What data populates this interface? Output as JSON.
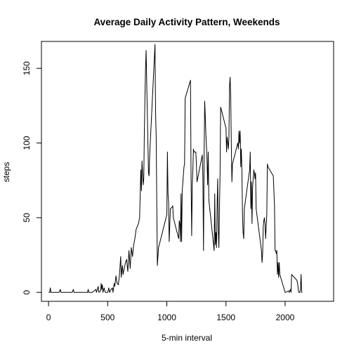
{
  "chart_data": {
    "type": "line",
    "title": "Average Daily Activity Pattern, Weekends",
    "xlabel": "5-min interval",
    "ylabel": "steps",
    "xlim": [
      -60,
      2410
    ],
    "ylim": [
      -6,
      168
    ],
    "xticks": [
      0,
      500,
      1000,
      1500,
      2000
    ],
    "yticks": [
      0,
      50,
      100,
      150
    ],
    "grid": false,
    "series": [
      {
        "color": "#000000",
        "points": [
          [
            0,
            0
          ],
          [
            10,
            0
          ],
          [
            15,
            3
          ],
          [
            20,
            0
          ],
          [
            50,
            0
          ],
          [
            90,
            0
          ],
          [
            100,
            2
          ],
          [
            105,
            0
          ],
          [
            150,
            0
          ],
          [
            200,
            0
          ],
          [
            210,
            2
          ],
          [
            215,
            0
          ],
          [
            250,
            0
          ],
          [
            300,
            0
          ],
          [
            330,
            0
          ],
          [
            335,
            2
          ],
          [
            340,
            0
          ],
          [
            370,
            0
          ],
          [
            400,
            2
          ],
          [
            405,
            0
          ],
          [
            420,
            4
          ],
          [
            425,
            0
          ],
          [
            440,
            1
          ],
          [
            445,
            6
          ],
          [
            450,
            2
          ],
          [
            455,
            5
          ],
          [
            460,
            0
          ],
          [
            470,
            3
          ],
          [
            480,
            0
          ],
          [
            500,
            0
          ],
          [
            510,
            3
          ],
          [
            515,
            0
          ],
          [
            530,
            2
          ],
          [
            540,
            3
          ],
          [
            545,
            0
          ],
          [
            555,
            6
          ],
          [
            560,
            4
          ],
          [
            570,
            11
          ],
          [
            575,
            8
          ],
          [
            580,
            6
          ],
          [
            590,
            5
          ],
          [
            600,
            12
          ],
          [
            610,
            24
          ],
          [
            615,
            10
          ],
          [
            620,
            15
          ],
          [
            625,
            18
          ],
          [
            630,
            12
          ],
          [
            640,
            16
          ],
          [
            650,
            20
          ],
          [
            660,
            22
          ],
          [
            670,
            14
          ],
          [
            680,
            28
          ],
          [
            690,
            16
          ],
          [
            700,
            30
          ],
          [
            710,
            24
          ],
          [
            720,
            32
          ],
          [
            730,
            36
          ],
          [
            740,
            42
          ],
          [
            750,
            44
          ],
          [
            760,
            46
          ],
          [
            770,
            50
          ],
          [
            780,
            82
          ],
          [
            785,
            68
          ],
          [
            790,
            88
          ],
          [
            800,
            72
          ],
          [
            805,
            76
          ],
          [
            810,
            108
          ],
          [
            815,
            130
          ],
          [
            820,
            150
          ],
          [
            825,
            162
          ],
          [
            830,
            140
          ],
          [
            835,
            120
          ],
          [
            840,
            100
          ],
          [
            845,
            80
          ],
          [
            850,
            78
          ],
          [
            855,
            92
          ],
          [
            900,
            166
          ],
          [
            905,
            120
          ],
          [
            910,
            104
          ],
          [
            915,
            60
          ],
          [
            920,
            18
          ],
          [
            925,
            24
          ],
          [
            930,
            30
          ],
          [
            1000,
            52
          ],
          [
            1005,
            94
          ],
          [
            1010,
            66
          ],
          [
            1015,
            60
          ],
          [
            1020,
            34
          ],
          [
            1030,
            56
          ],
          [
            1045,
            57
          ],
          [
            1050,
            58
          ],
          [
            1055,
            50
          ],
          [
            1100,
            36
          ],
          [
            1105,
            48
          ],
          [
            1110,
            46
          ],
          [
            1115,
            34
          ],
          [
            1120,
            66
          ],
          [
            1125,
            34
          ],
          [
            1130,
            68
          ],
          [
            1145,
            84
          ],
          [
            1150,
            86
          ],
          [
            1155,
            130
          ],
          [
            1200,
            142
          ],
          [
            1205,
            76
          ],
          [
            1210,
            38
          ],
          [
            1215,
            72
          ],
          [
            1220,
            82
          ],
          [
            1225,
            96
          ],
          [
            1230,
            94
          ],
          [
            1245,
            94
          ],
          [
            1250,
            86
          ],
          [
            1255,
            74
          ],
          [
            1300,
            92
          ],
          [
            1305,
            76
          ],
          [
            1310,
            28
          ],
          [
            1315,
            90
          ],
          [
            1320,
            128
          ],
          [
            1325,
            118
          ],
          [
            1330,
            106
          ],
          [
            1335,
            98
          ],
          [
            1340,
            88
          ],
          [
            1345,
            72
          ],
          [
            1350,
            94
          ],
          [
            1355,
            62
          ],
          [
            1400,
            28
          ],
          [
            1405,
            66
          ],
          [
            1410,
            32
          ],
          [
            1415,
            40
          ],
          [
            1420,
            30
          ],
          [
            1425,
            58
          ],
          [
            1430,
            76
          ],
          [
            1435,
            42
          ],
          [
            1440,
            30
          ],
          [
            1445,
            56
          ],
          [
            1450,
            80
          ],
          [
            1455,
            124
          ],
          [
            1500,
            110
          ],
          [
            1505,
            94
          ],
          [
            1510,
            104
          ],
          [
            1515,
            100
          ],
          [
            1520,
            96
          ],
          [
            1525,
            104
          ],
          [
            1530,
            138
          ],
          [
            1535,
            144
          ],
          [
            1540,
            132
          ],
          [
            1545,
            100
          ],
          [
            1550,
            74
          ],
          [
            1555,
            86
          ],
          [
            1600,
            100
          ],
          [
            1605,
            96
          ],
          [
            1610,
            108
          ],
          [
            1615,
            100
          ],
          [
            1620,
            108
          ],
          [
            1625,
            84
          ],
          [
            1630,
            96
          ],
          [
            1635,
            80
          ],
          [
            1640,
            50
          ],
          [
            1645,
            40
          ],
          [
            1650,
            36
          ],
          [
            1655,
            56
          ],
          [
            1700,
            82
          ],
          [
            1705,
            94
          ],
          [
            1710,
            56
          ],
          [
            1715,
            74
          ],
          [
            1720,
            46
          ],
          [
            1725,
            70
          ],
          [
            1730,
            76
          ],
          [
            1735,
            82
          ],
          [
            1740,
            80
          ],
          [
            1745,
            76
          ],
          [
            1750,
            80
          ],
          [
            1755,
            56
          ],
          [
            1800,
            28
          ],
          [
            1805,
            20
          ],
          [
            1810,
            26
          ],
          [
            1815,
            44
          ],
          [
            1820,
            48
          ],
          [
            1825,
            50
          ],
          [
            1830,
            46
          ],
          [
            1835,
            36
          ],
          [
            1840,
            44
          ],
          [
            1845,
            52
          ],
          [
            1850,
            86
          ],
          [
            1855,
            84
          ],
          [
            1900,
            78
          ],
          [
            1905,
            68
          ],
          [
            1910,
            58
          ],
          [
            1915,
            28
          ],
          [
            1920,
            28
          ],
          [
            1925,
            26
          ],
          [
            1930,
            28
          ],
          [
            1935,
            12
          ],
          [
            1940,
            20
          ],
          [
            1945,
            10
          ],
          [
            1950,
            20
          ],
          [
            1955,
            12
          ],
          [
            2000,
            0
          ],
          [
            2005,
            0
          ],
          [
            2030,
            1
          ],
          [
            2035,
            0
          ],
          [
            2045,
            2
          ],
          [
            2050,
            0
          ],
          [
            2055,
            12
          ],
          [
            2100,
            8
          ],
          [
            2105,
            6
          ],
          [
            2110,
            3
          ],
          [
            2115,
            0
          ],
          [
            2125,
            0
          ],
          [
            2130,
            2
          ],
          [
            2135,
            12
          ],
          [
            2140,
            0
          ],
          [
            2145,
            0
          ]
        ]
      }
    ]
  }
}
